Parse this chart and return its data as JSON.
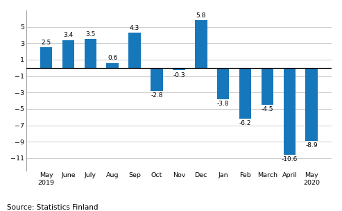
{
  "categories": [
    "May\n2019",
    "June",
    "July",
    "Aug",
    "Sep",
    "Oct",
    "Nov",
    "Dec",
    "Jan",
    "Feb",
    "March",
    "April",
    "May\n2020"
  ],
  "values": [
    2.5,
    3.4,
    3.5,
    0.6,
    4.3,
    -2.8,
    -0.3,
    5.8,
    -3.8,
    -6.2,
    -4.5,
    -10.6,
    -8.9
  ],
  "bar_color": "#1777bb",
  "ylim": [
    -12.5,
    7.0
  ],
  "yticks": [
    -11,
    -9,
    -7,
    -5,
    -3,
    -1,
    1,
    3,
    5
  ],
  "source_text": "Source: Statistics Finland",
  "background_color": "#ffffff",
  "grid_color": "#cccccc",
  "label_fontsize": 6.5,
  "tick_fontsize": 6.8,
  "source_fontsize": 7.5,
  "bar_width": 0.55
}
